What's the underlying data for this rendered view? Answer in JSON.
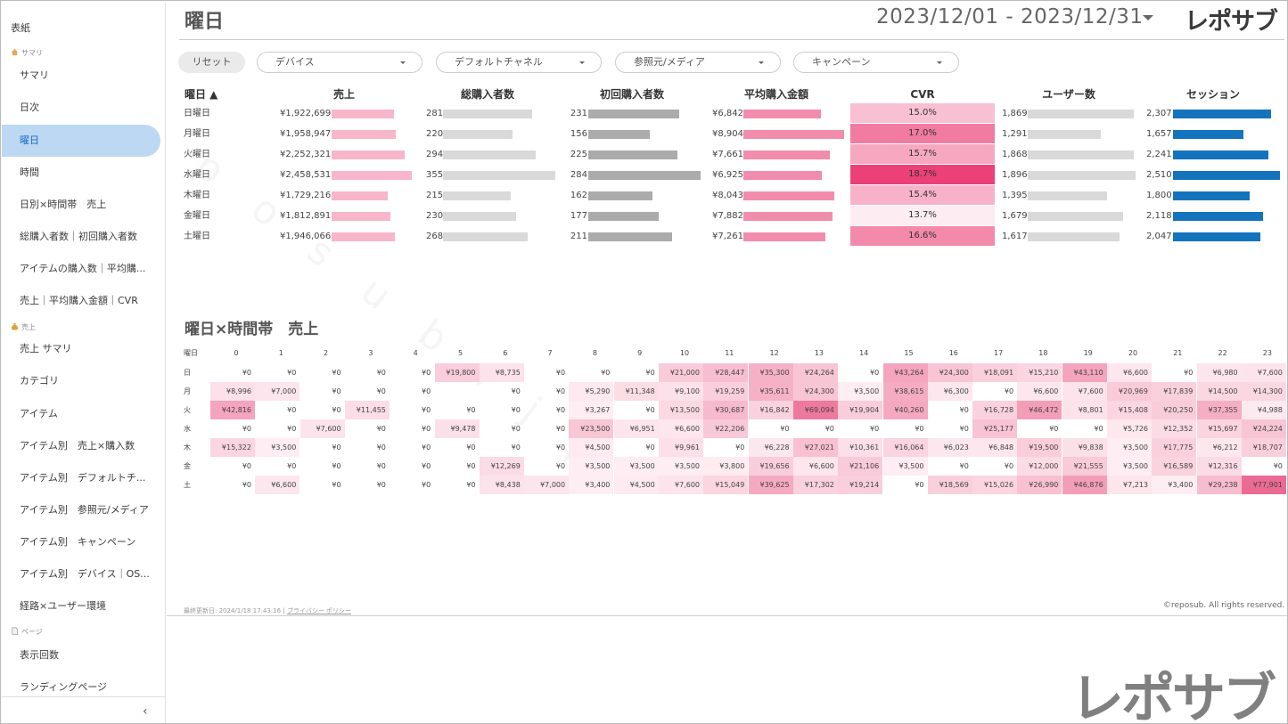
{
  "sidebar": {
    "top": "表紙",
    "sections": [
      {
        "label": "サマリ",
        "icon": "home-icon"
      },
      {
        "label": "売上",
        "icon": "money-bag-icon"
      },
      {
        "label": "ページ",
        "icon": "page-icon"
      }
    ],
    "items": [
      "サマリ",
      "日次",
      "曜日",
      "時間",
      "日別×時間帯　売上",
      "総購入者数｜初回購入者数",
      "アイテムの購入数｜平均購...",
      "売上｜平均購入金額｜CVR",
      "売上 サマリ",
      "カテゴリ",
      "アイテム",
      "アイテム別　売上×購入数",
      "アイテム別　デフォルトチ...",
      "アイテム別　参照元/メディア",
      "アイテム別　キャンペーン",
      "アイテム別　デバイス｜OS...",
      "経路×ユーザー環境",
      "表示回数",
      "ランディングページ"
    ],
    "collapse": "‹"
  },
  "header": {
    "title": "曜日",
    "date_range": "2023/12/01 - 2023/12/31",
    "logo": "レポサブ"
  },
  "filters": {
    "reset": "リセット",
    "items": [
      "デバイス",
      "デフォルトチャネル",
      "参照元/メディア",
      "キャンペーン"
    ]
  },
  "table": {
    "headers": [
      "曜日 ▲",
      "売上",
      "総購入者数",
      "初回購入者数",
      "平均購入金額",
      "CVR",
      "ユーザー数",
      "セッション"
    ],
    "rows": [
      {
        "day": "日曜日",
        "sales": "¥1,922,699",
        "buyers": "281",
        "first": "231",
        "avg": "¥6,842",
        "cvr": "15.0%",
        "users": "1,869",
        "sessions": "2,307"
      },
      {
        "day": "月曜日",
        "sales": "¥1,958,947",
        "buyers": "220",
        "first": "156",
        "avg": "¥8,904",
        "cvr": "17.0%",
        "users": "1,291",
        "sessions": "1,657"
      },
      {
        "day": "火曜日",
        "sales": "¥2,252,321",
        "buyers": "294",
        "first": "225",
        "avg": "¥7,661",
        "cvr": "15.7%",
        "users": "1,868",
        "sessions": "2,241"
      },
      {
        "day": "水曜日",
        "sales": "¥2,458,531",
        "buyers": "355",
        "first": "284",
        "avg": "¥6,925",
        "cvr": "18.7%",
        "users": "1,896",
        "sessions": "2,510"
      },
      {
        "day": "木曜日",
        "sales": "¥1,729,216",
        "buyers": "215",
        "first": "162",
        "avg": "¥8,043",
        "cvr": "15.4%",
        "users": "1,395",
        "sessions": "1,800"
      },
      {
        "day": "金曜日",
        "sales": "¥1,812,891",
        "buyers": "230",
        "first": "177",
        "avg": "¥7,882",
        "cvr": "13.7%",
        "users": "1,679",
        "sessions": "2,118"
      },
      {
        "day": "土曜日",
        "sales": "¥1,946,066",
        "buyers": "268",
        "first": "211",
        "avg": "¥7,261",
        "cvr": "16.6%",
        "users": "1,617",
        "sessions": "2,047"
      }
    ],
    "colors": {
      "sales": "#f7b6c9",
      "buyers": "#d9d9d9",
      "first": "#ababab",
      "avg": "#f28cad",
      "sessions": "#1473bd"
    }
  },
  "heatmap": {
    "title": "曜日×時間帯　売上",
    "corner": "曜日",
    "hours": [
      "0",
      "1",
      "2",
      "3",
      "4",
      "5",
      "6",
      "7",
      "8",
      "9",
      "10",
      "11",
      "12",
      "13",
      "14",
      "15",
      "16",
      "17",
      "18",
      "19",
      "20",
      "21",
      "22",
      "23"
    ],
    "rows": [
      {
        "day": "日",
        "values": [
          "¥0",
          "¥0",
          "¥0",
          "¥0",
          "¥0",
          "¥19,800",
          "¥8,735",
          "¥0",
          "¥0",
          "¥0",
          "¥21,000",
          "¥28,447",
          "¥35,300",
          "¥24,264",
          "¥0",
          "¥43,264",
          "¥24,300",
          "¥18,091",
          "¥15,210",
          "¥43,110",
          "¥6,600",
          "¥0",
          "¥6,980",
          "¥7,600"
        ]
      },
      {
        "day": "月",
        "values": [
          "¥8,996",
          "¥7,000",
          "¥0",
          "¥0",
          "¥0",
          "",
          "¥0",
          "¥0",
          "¥5,290",
          "¥11,348",
          "¥9,100",
          "¥19,259",
          "¥35,611",
          "¥24,300",
          "¥3,500",
          "¥38,615",
          "¥6,300",
          "¥0",
          "¥6,600",
          "¥7,600",
          "¥20,969",
          "¥17,839",
          "¥14,500",
          "¥14,300"
        ]
      },
      {
        "day": "火",
        "values": [
          "¥42,816",
          "¥0",
          "¥0",
          "¥11,455",
          "¥0",
          "¥0",
          "¥0",
          "¥0",
          "¥3,267",
          "¥0",
          "¥13,500",
          "¥30,687",
          "¥16,842",
          "¥69,094",
          "¥19,904",
          "¥40,260",
          "¥0",
          "¥16,728",
          "¥46,472",
          "¥8,801",
          "¥15,408",
          "¥20,250",
          "¥37,355",
          "¥4,988"
        ]
      },
      {
        "day": "水",
        "values": [
          "¥0",
          "¥0",
          "¥7,600",
          "¥0",
          "¥0",
          "¥9,478",
          "¥0",
          "¥0",
          "¥23,500",
          "¥6,951",
          "¥6,600",
          "¥22,206",
          "¥0",
          "¥0",
          "¥0",
          "¥0",
          "¥0",
          "¥25,177",
          "¥0",
          "¥0",
          "¥5,726",
          "¥12,352",
          "¥15,697",
          "¥24,224"
        ]
      },
      {
        "day": "木",
        "values": [
          "¥15,322",
          "¥3,500",
          "¥0",
          "¥0",
          "¥0",
          "¥0",
          "¥0",
          "¥0",
          "¥4,500",
          "¥0",
          "¥9,961",
          "¥0",
          "¥6,228",
          "¥27,021",
          "¥10,361",
          "¥16,064",
          "¥6,023",
          "¥6,848",
          "¥19,500",
          "¥9,838",
          "¥3,500",
          "¥17,775",
          "¥6,212",
          "¥18,707"
        ]
      },
      {
        "day": "金",
        "values": [
          "¥0",
          "¥0",
          "¥0",
          "¥0",
          "¥0",
          "¥0",
          "¥12,269",
          "¥0",
          "¥3,500",
          "¥3,500",
          "¥3,500",
          "¥3,800",
          "¥19,656",
          "¥6,600",
          "¥21,106",
          "¥3,500",
          "¥0",
          "¥0",
          "¥12,000",
          "¥21,555",
          "¥3,500",
          "¥16,589",
          "¥12,316",
          "¥0"
        ]
      },
      {
        "day": "土",
        "values": [
          "¥0",
          "¥6,600",
          "¥0",
          "¥0",
          "¥0",
          "¥0",
          "¥8,438",
          "¥7,000",
          "¥3,400",
          "¥4,500",
          "¥7,600",
          "¥15,049",
          "¥39,625",
          "¥17,302",
          "¥19,214",
          "¥0",
          "¥18,569",
          "¥15,026",
          "¥26,990",
          "¥46,876",
          "¥7,213",
          "¥3,400",
          "¥29,238",
          "¥77,901"
        ]
      }
    ]
  },
  "footer": {
    "updated": "最終更新日: 2024/1/18 17:43:16",
    "privacy": "プライバシー ポリシー",
    "copyright": "©reposub. All rights reserved.",
    "logo_big": "レポサブ",
    "watermark": "reposub.jp"
  }
}
